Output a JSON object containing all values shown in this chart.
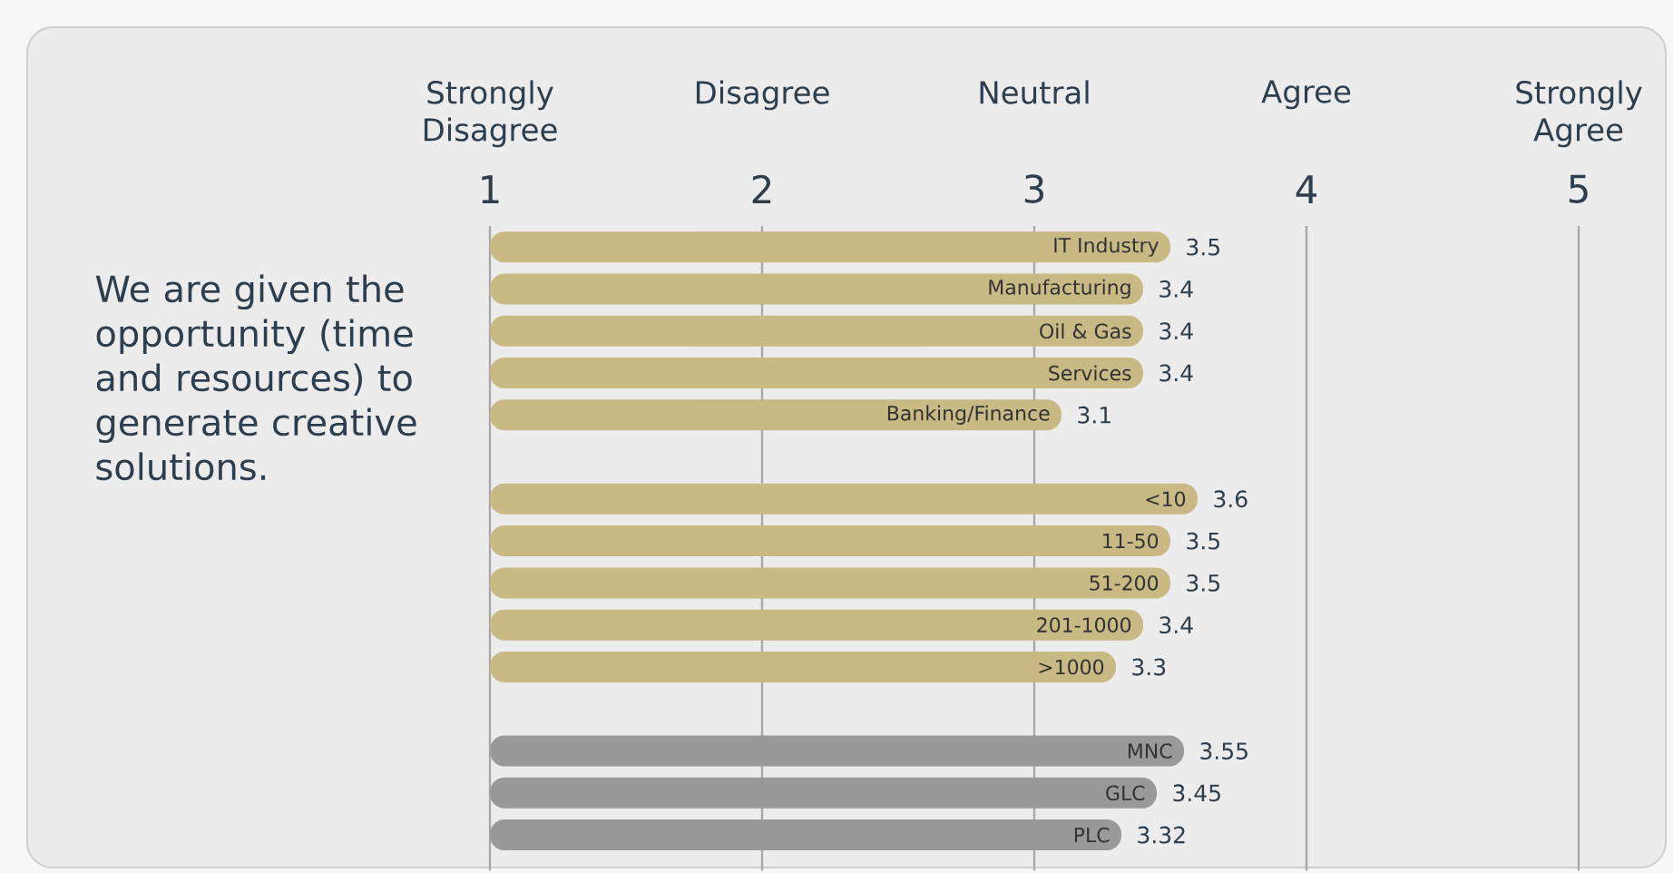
{
  "chart_data": {
    "type": "bar",
    "orientation": "horizontal",
    "title": "We are given the opportunity (time and resources) to generate creative solutions.",
    "categories": [
      "IT Industry",
      "Manufacturing",
      "Oil & Gas",
      "Services",
      "Banking/Finance",
      null,
      "<10",
      "11-50",
      "51-200",
      "201-1000",
      ">1000",
      null,
      "MNC",
      "GLC",
      "PLC"
    ],
    "values": [
      3.5,
      3.4,
      3.4,
      3.4,
      3.1,
      null,
      3.6,
      3.5,
      3.5,
      3.4,
      3.3,
      null,
      3.55,
      3.45,
      3.32
    ],
    "colors": [
      "#c9b985",
      "#c9b985",
      "#c9b985",
      "#c9b985",
      "#c9b985",
      null,
      "#c9b985",
      "#c9b985",
      "#c9b985",
      "#c9b985",
      "#c9b985",
      null,
      "#999999",
      "#999999",
      "#999999"
    ],
    "xlim": [
      1,
      5
    ],
    "xticks": [
      1,
      2,
      3,
      4,
      5
    ],
    "annotations": [
      "Strongly Disagree",
      "Disagree",
      "Neutral",
      "Agree",
      "Strongly Agree"
    ],
    "grid": "x",
    "data_labels": true
  }
}
